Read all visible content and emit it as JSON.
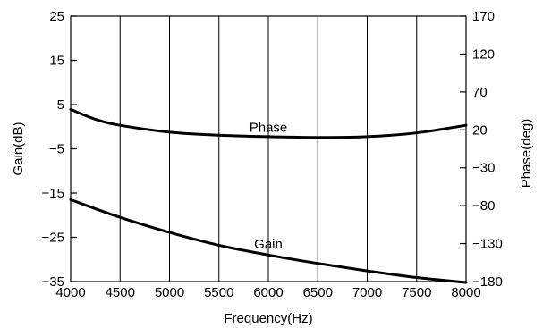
{
  "chart_data": {
    "type": "line",
    "title": "",
    "xlabel": "Frequency(Hz)",
    "ylabel_left": "Gain(dB)",
    "ylabel_right": "Phase(deg)",
    "grid": "vertical",
    "legend": "none",
    "x_axis": {
      "lim": [
        4000,
        8000
      ],
      "ticks": [
        4000,
        4500,
        5000,
        5500,
        6000,
        6500,
        7000,
        7500,
        8000
      ],
      "tick_labels": [
        "4000",
        "4500",
        "5000",
        "5500",
        "6000",
        "6500",
        "7000",
        "7500",
        "8000"
      ]
    },
    "y_left_axis": {
      "lim": [
        -35,
        25
      ],
      "ticks": [
        25,
        15,
        5,
        -5,
        -15,
        -25,
        -35
      ],
      "tick_labels": [
        "25",
        "15",
        "5",
        "−5",
        "−15",
        "−25",
        "−35"
      ]
    },
    "y_right_axis": {
      "lim": [
        -180,
        170
      ],
      "ticks": [
        170,
        120,
        70,
        20,
        -30,
        -80,
        -130,
        -180
      ],
      "tick_labels": [
        "170",
        "120",
        "70",
        "20",
        "−30",
        "−80",
        "−130",
        "−180"
      ]
    },
    "series": [
      {
        "name": "Phase",
        "axis": "right",
        "x": [
          4000,
          4250,
          4500,
          5000,
          5500,
          6000,
          6500,
          7000,
          7500,
          8000
        ],
        "y": [
          47,
          34,
          26,
          17,
          13,
          11,
          10,
          11,
          16,
          26
        ]
      },
      {
        "name": "Gain",
        "axis": "left",
        "x": [
          4000,
          4500,
          5000,
          5500,
          6000,
          6500,
          7000,
          7500,
          8000
        ],
        "y": [
          -16.5,
          -20.5,
          -23.9,
          -26.8,
          -29.0,
          -30.9,
          -32.6,
          -34.1,
          -35.2
        ]
      }
    ],
    "annotations": [
      {
        "text": "Phase",
        "series": "Phase",
        "x": 6000,
        "y": 23
      },
      {
        "text": "Gain",
        "series": "Gain",
        "x": 6000,
        "y": -26.5
      }
    ]
  }
}
